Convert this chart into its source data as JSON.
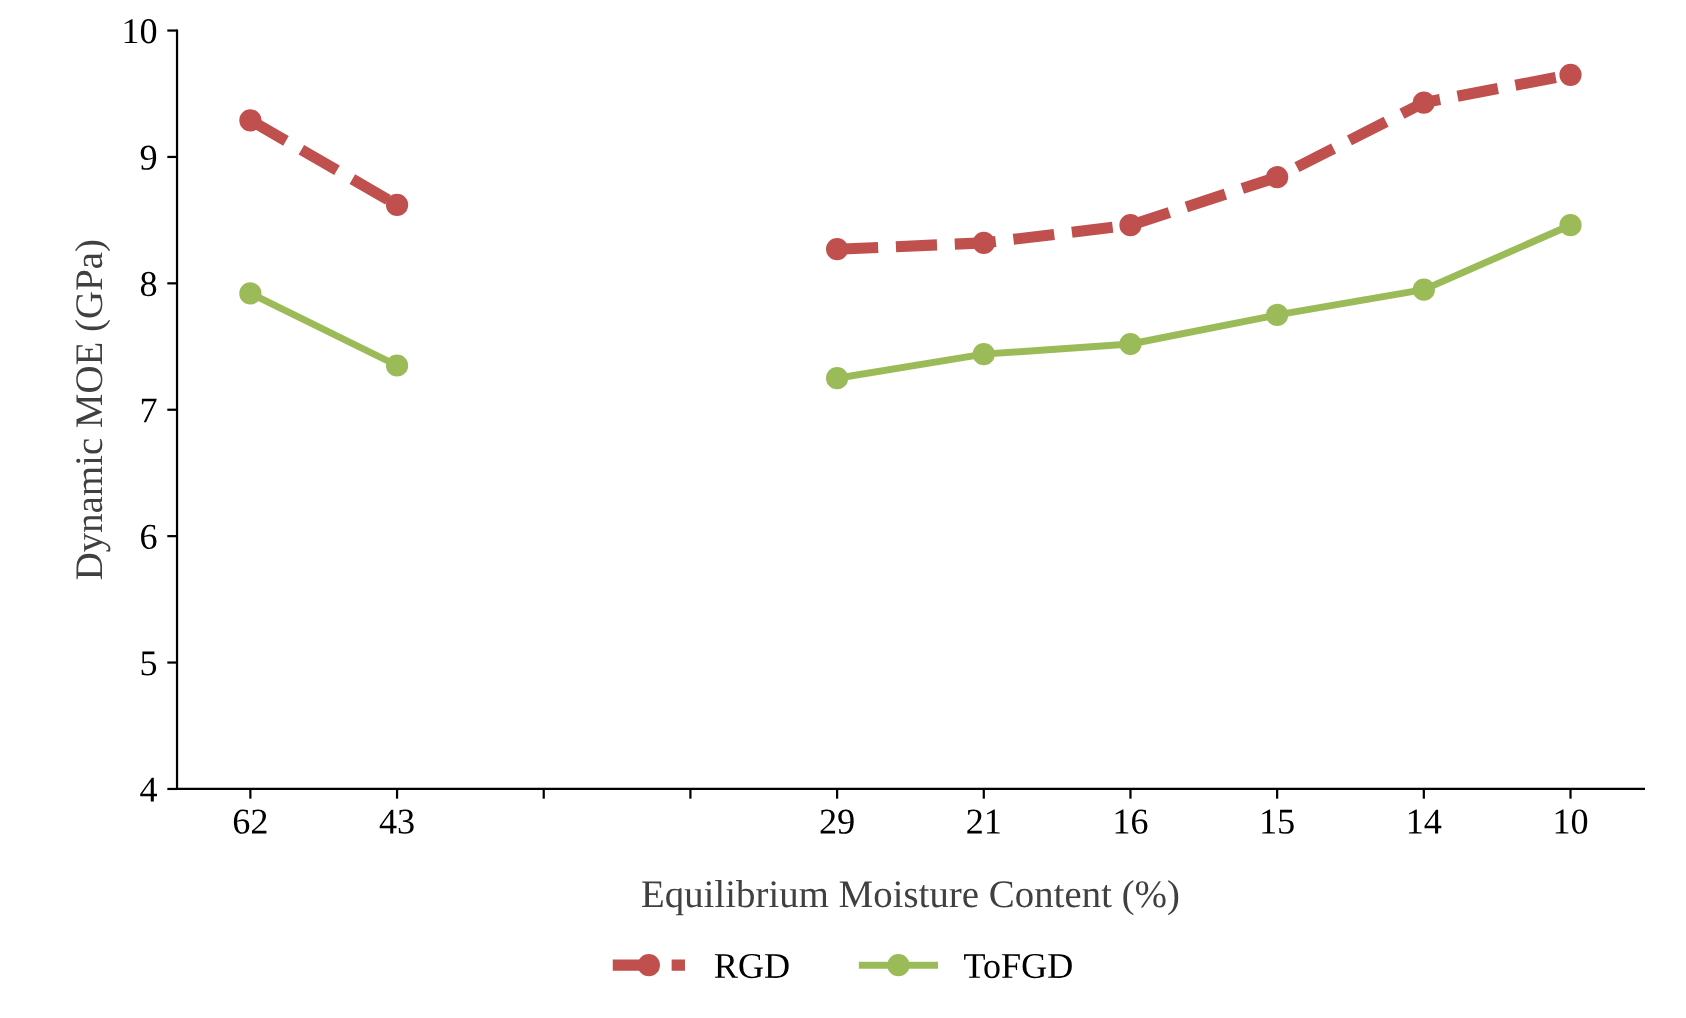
{
  "chart_data": {
    "type": "line",
    "xlabel": "Equilibrium Moisture Content (%)",
    "ylabel": "Dynamic MOE (GPa)",
    "categories": [
      "62",
      "43",
      null,
      null,
      "29",
      "21",
      "16",
      "15",
      "14",
      "10"
    ],
    "series": [
      {
        "name": "RGD",
        "color": "#c0504d",
        "line_style": "dashed",
        "values": [
          9.29,
          8.62,
          null,
          null,
          8.27,
          8.32,
          8.46,
          8.84,
          9.43,
          9.65
        ]
      },
      {
        "name": "ToFGD",
        "color": "#9bbb59",
        "line_style": "solid",
        "values": [
          7.92,
          7.35,
          null,
          null,
          7.25,
          7.44,
          7.52,
          7.75,
          7.95,
          8.46
        ]
      }
    ],
    "marker": "circle",
    "ylim": [
      4,
      10
    ],
    "yticks": [
      4,
      5,
      6,
      7,
      8,
      9,
      10
    ],
    "grid": false,
    "legend": "bottom"
  }
}
